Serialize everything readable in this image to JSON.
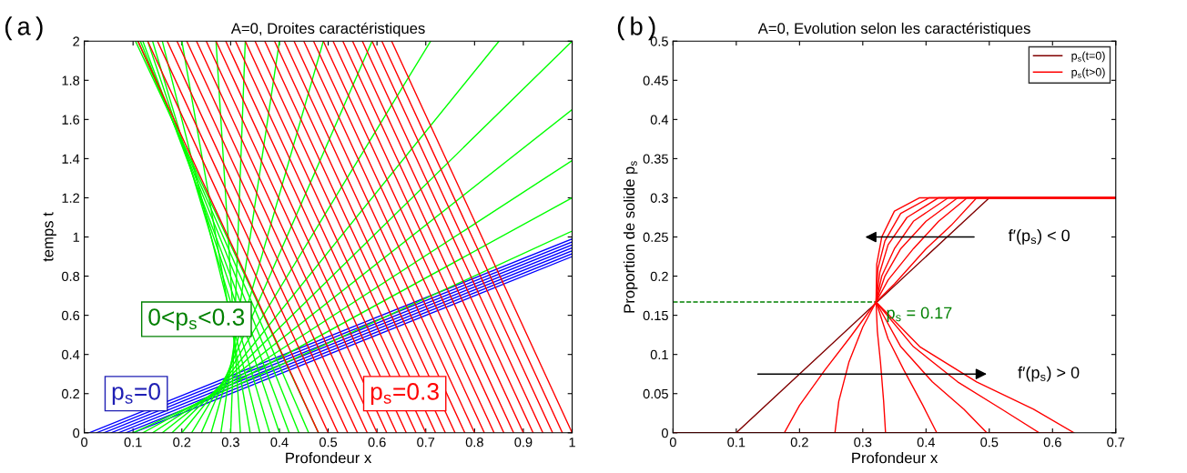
{
  "chart_data": [
    {
      "type": "line",
      "title": "A=0, Droites caractéristiques",
      "xlabel": "Profondeur x",
      "ylabel": "temps t",
      "xlim": [
        0,
        1
      ],
      "ylim": [
        0,
        2
      ],
      "xticks": [
        0,
        0.1,
        0.2,
        0.3,
        0.4,
        0.5,
        0.6,
        0.7,
        0.8,
        0.9,
        1
      ],
      "yticks": [
        0,
        0.2,
        0.4,
        0.6,
        0.8,
        1,
        1.2,
        1.4,
        1.6,
        1.8,
        2
      ],
      "grid": false,
      "legend": false,
      "annotations": [
        "(a)",
        "p$_{s}$=0",
        "0<p$_{s}$<0.3",
        "p$_{s}$=0.3"
      ],
      "series": [
        {
          "color": "#0000ff",
          "x": [
            0.01,
            1
          ],
          "values": [
            0,
            0.99
          ]
        },
        {
          "color": "#0000ff",
          "x": [
            0.025,
            1
          ],
          "values": [
            0,
            0.975
          ]
        },
        {
          "color": "#0000ff",
          "x": [
            0.04,
            1
          ],
          "values": [
            0,
            0.96
          ]
        },
        {
          "color": "#0000ff",
          "x": [
            0.055,
            1
          ],
          "values": [
            0,
            0.945
          ]
        },
        {
          "color": "#0000ff",
          "x": [
            0.07,
            1
          ],
          "values": [
            0,
            0.93
          ]
        },
        {
          "color": "#0000ff",
          "x": [
            0.085,
            1
          ],
          "values": [
            0,
            0.915
          ]
        },
        {
          "color": "#0000ff",
          "x": [
            0.1,
            1
          ],
          "values": [
            0,
            0.9
          ]
        },
        {
          "color": "#00ff00",
          "x": [
            0.1,
            1
          ],
          "values": [
            0,
            1.03
          ]
        },
        {
          "color": "#00ff00",
          "x": [
            0.12,
            1
          ],
          "values": [
            0,
            1.2
          ]
        },
        {
          "color": "#00ff00",
          "x": [
            0.14,
            1
          ],
          "values": [
            0,
            1.39
          ]
        },
        {
          "color": "#00ff00",
          "x": [
            0.16,
            1
          ],
          "values": [
            0,
            1.65
          ]
        },
        {
          "color": "#00ff00",
          "x": [
            0.18,
            1
          ],
          "values": [
            0,
            2
          ]
        },
        {
          "color": "#00ff00",
          "x": [
            0.2,
            0.85
          ],
          "values": [
            0,
            2
          ]
        },
        {
          "color": "#00ff00",
          "x": [
            0.22,
            0.71
          ],
          "values": [
            0,
            2
          ]
        },
        {
          "color": "#00ff00",
          "x": [
            0.24,
            0.59
          ],
          "values": [
            0,
            2
          ]
        },
        {
          "color": "#00ff00",
          "x": [
            0.26,
            0.49
          ],
          "values": [
            0,
            2
          ]
        },
        {
          "color": "#00ff00",
          "x": [
            0.28,
            0.4
          ],
          "values": [
            0,
            2
          ]
        },
        {
          "color": "#00ff00",
          "x": [
            0.3,
            0.33
          ],
          "values": [
            0,
            2
          ]
        },
        {
          "color": "#00ff00",
          "x": [
            0.32,
            0.27
          ],
          "values": [
            0,
            2
          ]
        },
        {
          "color": "#00ff00",
          "x": [
            0.34,
            0.2
          ],
          "values": [
            0,
            2
          ]
        },
        {
          "color": "#00ff00",
          "x": [
            0.36,
            0.16
          ],
          "values": [
            0,
            2
          ]
        },
        {
          "color": "#00ff00",
          "x": [
            0.38,
            0.14
          ],
          "values": [
            0,
            2
          ]
        },
        {
          "color": "#00ff00",
          "x": [
            0.4,
            0.13
          ],
          "values": [
            0,
            2
          ]
        },
        {
          "color": "#00ff00",
          "x": [
            0.42,
            0.12
          ],
          "values": [
            0,
            2
          ]
        },
        {
          "color": "#00ff00",
          "x": [
            0.44,
            0.115
          ],
          "values": [
            0,
            2
          ]
        },
        {
          "color": "#00ff00",
          "x": [
            0.46,
            0.11
          ],
          "values": [
            0,
            2
          ]
        },
        {
          "color": "#00ff00",
          "x": [
            0.48,
            0.105
          ],
          "values": [
            0,
            2
          ]
        },
        {
          "color": "#ff0000",
          "x": [
            0.48,
            0.11
          ],
          "values": [
            0,
            2
          ]
        },
        {
          "color": "#ff0000",
          "x": [
            0.5,
            0.13
          ],
          "values": [
            0,
            2
          ]
        },
        {
          "color": "#ff0000",
          "x": [
            0.52,
            0.15
          ],
          "values": [
            0,
            2
          ]
        },
        {
          "color": "#ff0000",
          "x": [
            0.54,
            0.17
          ],
          "values": [
            0,
            2
          ]
        },
        {
          "color": "#ff0000",
          "x": [
            0.56,
            0.19
          ],
          "values": [
            0,
            2
          ]
        },
        {
          "color": "#ff0000",
          "x": [
            0.58,
            0.21
          ],
          "values": [
            0,
            2
          ]
        },
        {
          "color": "#ff0000",
          "x": [
            0.6,
            0.23
          ],
          "values": [
            0,
            2
          ]
        },
        {
          "color": "#ff0000",
          "x": [
            0.62,
            0.25
          ],
          "values": [
            0,
            2
          ]
        },
        {
          "color": "#ff0000",
          "x": [
            0.64,
            0.27
          ],
          "values": [
            0,
            2
          ]
        },
        {
          "color": "#ff0000",
          "x": [
            0.66,
            0.29
          ],
          "values": [
            0,
            2
          ]
        },
        {
          "color": "#ff0000",
          "x": [
            0.68,
            0.31
          ],
          "values": [
            0,
            2
          ]
        },
        {
          "color": "#ff0000",
          "x": [
            0.7,
            0.33
          ],
          "values": [
            0,
            2
          ]
        },
        {
          "color": "#ff0000",
          "x": [
            0.72,
            0.35
          ],
          "values": [
            0,
            2
          ]
        },
        {
          "color": "#ff0000",
          "x": [
            0.74,
            0.37
          ],
          "values": [
            0,
            2
          ]
        },
        {
          "color": "#ff0000",
          "x": [
            0.76,
            0.39
          ],
          "values": [
            0,
            2
          ]
        },
        {
          "color": "#ff0000",
          "x": [
            0.78,
            0.41
          ],
          "values": [
            0,
            2
          ]
        },
        {
          "color": "#ff0000",
          "x": [
            0.8,
            0.43
          ],
          "values": [
            0,
            2
          ]
        },
        {
          "color": "#ff0000",
          "x": [
            0.82,
            0.45
          ],
          "values": [
            0,
            2
          ]
        },
        {
          "color": "#ff0000",
          "x": [
            0.84,
            0.47
          ],
          "values": [
            0,
            2
          ]
        },
        {
          "color": "#ff0000",
          "x": [
            0.86,
            0.49
          ],
          "values": [
            0,
            2
          ]
        },
        {
          "color": "#ff0000",
          "x": [
            0.88,
            0.51
          ],
          "values": [
            0,
            2
          ]
        },
        {
          "color": "#ff0000",
          "x": [
            0.9,
            0.53
          ],
          "values": [
            0,
            2
          ]
        },
        {
          "color": "#ff0000",
          "x": [
            0.92,
            0.55
          ],
          "values": [
            0,
            2
          ]
        },
        {
          "color": "#ff0000",
          "x": [
            0.94,
            0.57
          ],
          "values": [
            0,
            2
          ]
        },
        {
          "color": "#ff0000",
          "x": [
            0.96,
            0.59
          ],
          "values": [
            0,
            2
          ]
        },
        {
          "color": "#ff0000",
          "x": [
            0.98,
            0.61
          ],
          "values": [
            0,
            2
          ]
        },
        {
          "color": "#ff0000",
          "x": [
            1,
            0.63
          ],
          "values": [
            0,
            2
          ]
        }
      ]
    },
    {
      "type": "line",
      "title": "A=0, Evolution selon les caractéristiques",
      "xlabel": "Profondeur x",
      "ylabel": "Proportion de solide p$_{s}$",
      "xlim": [
        0,
        0.7
      ],
      "ylim": [
        0,
        0.5
      ],
      "xticks": [
        0,
        0.1,
        0.2,
        0.3,
        0.4,
        0.5,
        0.6,
        0.7
      ],
      "yticks": [
        0,
        0.05,
        0.1,
        0.15,
        0.2,
        0.25,
        0.3,
        0.35,
        0.4,
        0.45,
        0.5
      ],
      "grid": false,
      "legend": "top right",
      "annotations": [
        "(b)",
        {
          "text": "p$_{s}$ = 0.17",
          "x": 0.321,
          "y": 0.167
        },
        "f′(p$_{s}$) < 0",
        "f′(p$_{s}$) > 0"
      ],
      "series": [
        {
          "color": "#008000",
          "line_style": "dashed",
          "x": [
            0,
            0.321
          ],
          "values": [
            0.167,
            0.167
          ]
        },
        {
          "name": "p$_{s}$(t=0)",
          "color": "#800000",
          "x": [
            0,
            0.1,
            0.5,
            0.7
          ],
          "values": [
            0,
            0,
            0.3,
            0.3
          ]
        },
        {
          "name": "p$_{s}$(t>0)",
          "color": "#ff0000",
          "x": [
            0,
            0.176,
            0.2,
            0.24,
            0.28,
            0.321,
            0.35,
            0.4,
            0.44,
            0.48,
            0.7
          ],
          "values": [
            0,
            0,
            0.035,
            0.08,
            0.122,
            0.167,
            0.19,
            0.235,
            0.265,
            0.3,
            0.3
          ]
        },
        {
          "color": "#ff0000",
          "x": [
            0,
            0.256,
            0.262,
            0.278,
            0.3,
            0.321,
            0.34,
            0.38,
            0.42,
            0.465,
            0.7
          ],
          "values": [
            0,
            0,
            0.04,
            0.09,
            0.135,
            0.167,
            0.195,
            0.235,
            0.27,
            0.3,
            0.3
          ]
        },
        {
          "color": "#ff0000",
          "x": [
            0,
            0.336,
            0.333,
            0.328,
            0.323,
            0.321,
            0.335,
            0.36,
            0.4,
            0.45,
            0.7
          ],
          "values": [
            0,
            0,
            0.04,
            0.09,
            0.13,
            0.167,
            0.2,
            0.235,
            0.27,
            0.3,
            0.3
          ]
        },
        {
          "color": "#ff0000",
          "x": [
            0,
            0.417,
            0.395,
            0.365,
            0.34,
            0.321,
            0.33,
            0.35,
            0.38,
            0.435,
            0.7
          ],
          "values": [
            0,
            0,
            0.035,
            0.08,
            0.12,
            0.167,
            0.2,
            0.235,
            0.27,
            0.3,
            0.3
          ]
        },
        {
          "color": "#ff0000",
          "x": [
            0,
            0.496,
            0.46,
            0.41,
            0.36,
            0.321,
            0.327,
            0.34,
            0.37,
            0.42,
            0.7
          ],
          "values": [
            0,
            0,
            0.03,
            0.065,
            0.11,
            0.167,
            0.205,
            0.24,
            0.275,
            0.3,
            0.3
          ]
        },
        {
          "color": "#ff0000",
          "x": [
            0,
            0.579,
            0.52,
            0.45,
            0.38,
            0.321,
            0.324,
            0.335,
            0.36,
            0.405,
            0.7
          ],
          "values": [
            0,
            0,
            0.03,
            0.065,
            0.11,
            0.167,
            0.21,
            0.245,
            0.28,
            0.3,
            0.3
          ]
        },
        {
          "color": "#ff0000",
          "x": [
            0,
            0.634,
            0.57,
            0.48,
            0.39,
            0.321,
            0.322,
            0.33,
            0.35,
            0.39,
            0.7
          ],
          "values": [
            0,
            0,
            0.03,
            0.065,
            0.11,
            0.167,
            0.215,
            0.25,
            0.283,
            0.3,
            0.3
          ]
        }
      ]
    }
  ]
}
